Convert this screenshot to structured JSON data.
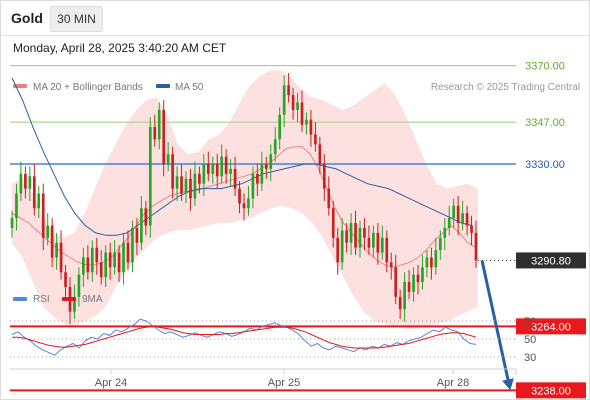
{
  "header": {
    "title": "Gold",
    "timeframe": "30 MIN",
    "datetime": "Monday, April 28, 2025 3:40:20 AM CET"
  },
  "legend": {
    "ma20_label": "MA 20 + Bollinger Bands",
    "ma50_label": "MA 50",
    "copyright": "Research © 2025 Trading Central",
    "rsi_label": "RSI",
    "ma9_label": "9MA"
  },
  "colors": {
    "ma20": "#f08080",
    "bollinger_fill": "#fde1e1",
    "ma50": "#2b5fa0",
    "candle_up": "#27a327",
    "candle_down": "#cc1f1f",
    "resistance": "#a8d48a",
    "pivot": "#4a7fd8",
    "support": "#e8191c",
    "arrow": "#2b5fa0",
    "rsi": "#5a86d8",
    "rsi_ma": "#e0191c"
  },
  "chart_data": [
    {
      "type": "candlestick",
      "title": "Gold",
      "x_ticks": [
        "Apr 24",
        "Apr 25",
        "Apr 28"
      ],
      "levels": [
        {
          "value": 3370.0,
          "label": "3370.00",
          "kind": "resistance"
        },
        {
          "value": 3347.0,
          "label": "3347.00",
          "kind": "resistance"
        },
        {
          "value": 3330.0,
          "label": "3330.00",
          "kind": "pivot"
        },
        {
          "value": 3290.8,
          "label": "3290.80",
          "kind": "last-price"
        },
        {
          "value": 3264.0,
          "label": "3264.00",
          "kind": "support"
        },
        {
          "value": 3238.0,
          "label": "3238.00",
          "kind": "support"
        }
      ],
      "closes": [
        3308,
        3318,
        3326,
        3320,
        3325,
        3312,
        3318,
        3300,
        3305,
        3292,
        3298,
        3286,
        3280,
        3270,
        3276,
        3285,
        3292,
        3286,
        3296,
        3290,
        3284,
        3294,
        3288,
        3294,
        3286,
        3298,
        3290,
        3304,
        3298,
        3312,
        3305,
        3345,
        3340,
        3352,
        3330,
        3334,
        3320,
        3325,
        3318,
        3324,
        3316,
        3326,
        3322,
        3330,
        3326,
        3330,
        3325,
        3333,
        3326,
        3328,
        3320,
        3314,
        3312,
        3316,
        3326,
        3322,
        3330,
        3328,
        3334,
        3340,
        3350,
        3362,
        3358,
        3352,
        3355,
        3346,
        3348,
        3342,
        3338,
        3330,
        3320,
        3312,
        3300,
        3290,
        3303,
        3298,
        3306,
        3296,
        3304,
        3300,
        3296,
        3302,
        3294,
        3300,
        3290,
        3288,
        3276,
        3271,
        3282,
        3278,
        3285,
        3282,
        3288,
        3292,
        3288,
        3295,
        3300,
        3304,
        3308,
        3313,
        3306,
        3310,
        3305,
        3302,
        3290.8
      ],
      "ma20": [
        3310,
        3308,
        3306,
        3303,
        3300,
        3297,
        3294,
        3292,
        3290,
        3289,
        3289,
        3290,
        3292,
        3296,
        3300,
        3305,
        3310,
        3313,
        3315,
        3317,
        3318,
        3319,
        3319,
        3320,
        3321,
        3322,
        3323,
        3324,
        3325,
        3326,
        3328,
        3330,
        3333,
        3336,
        3337,
        3337,
        3334,
        3328,
        3320,
        3312,
        3306,
        3302,
        3298,
        3294,
        3291,
        3289,
        3288,
        3289,
        3290,
        3292,
        3295,
        3299,
        3302,
        3305,
        3302,
        3298,
        3296
      ],
      "ma50": [
        3365,
        3356,
        3345,
        3335,
        3326,
        3317,
        3310,
        3305,
        3302,
        3301,
        3301,
        3302,
        3305,
        3308,
        3311,
        3314,
        3317,
        3319,
        3320,
        3320,
        3320,
        3321,
        3322,
        3324,
        3326,
        3327,
        3328,
        3329,
        3330,
        3330,
        3329,
        3328,
        3326,
        3324,
        3322,
        3321,
        3320,
        3318,
        3316,
        3314,
        3312,
        3310,
        3308,
        3306,
        3305
      ],
      "bollinger_upper": [
        3322,
        3324,
        3318,
        3308,
        3302,
        3300,
        3302,
        3310,
        3320,
        3330,
        3338,
        3346,
        3352,
        3356,
        3357,
        3350,
        3338,
        3334,
        3335,
        3340,
        3342,
        3347,
        3355,
        3362,
        3366,
        3368,
        3368,
        3365,
        3360,
        3357,
        3356,
        3354,
        3352,
        3354,
        3357,
        3360,
        3363,
        3358,
        3350,
        3340,
        3330,
        3322,
        3320,
        3321,
        3322,
        3320
      ],
      "bollinger_lower": [
        3298,
        3292,
        3282,
        3272,
        3268,
        3265,
        3264,
        3266,
        3268,
        3272,
        3280,
        3286,
        3292,
        3296,
        3300,
        3302,
        3303,
        3303,
        3304,
        3305,
        3306,
        3306,
        3307,
        3308,
        3310,
        3312,
        3313,
        3312,
        3310,
        3306,
        3300,
        3292,
        3284,
        3276,
        3270,
        3266,
        3265,
        3264,
        3263,
        3263,
        3264,
        3265,
        3266,
        3268,
        3270,
        3272
      ]
    },
    {
      "type": "line",
      "title": "RSI",
      "y_ticks": [
        "70",
        "50",
        "30"
      ],
      "ylim": [
        20,
        80
      ],
      "series": [
        {
          "name": "RSI",
          "values": [
            55,
            58,
            52,
            48,
            42,
            38,
            35,
            32,
            38,
            42,
            45,
            40,
            48,
            52,
            50,
            56,
            54,
            60,
            58,
            62,
            66,
            72,
            70,
            65,
            60,
            56,
            58,
            55,
            52,
            54,
            57,
            54,
            52,
            55,
            58,
            56,
            53,
            55,
            58,
            62,
            60,
            64,
            66,
            68,
            65,
            63,
            60,
            55,
            48,
            42,
            45,
            40,
            38,
            42,
            40,
            38,
            36,
            40,
            38,
            42,
            40,
            44,
            42,
            46,
            44,
            48,
            50,
            52,
            56,
            60,
            58,
            63,
            60,
            58,
            50,
            45,
            44
          ]
        },
        {
          "name": "9MA",
          "values": [
            52,
            52,
            51,
            49,
            47,
            45,
            43,
            42,
            41,
            41,
            42,
            43,
            44,
            46,
            48,
            50,
            52,
            54,
            56,
            58,
            60,
            62,
            63,
            64,
            63,
            62,
            61,
            59,
            57,
            56,
            55,
            55,
            55,
            55,
            55,
            56,
            56,
            57,
            58,
            59,
            60,
            61,
            62,
            63,
            63,
            63,
            62,
            60,
            58,
            55,
            52,
            49,
            46,
            44,
            42,
            41,
            40,
            40,
            40,
            40,
            40,
            41,
            42,
            43,
            44,
            45,
            47,
            49,
            51,
            53,
            55,
            56,
            57,
            57,
            56,
            54,
            52
          ]
        }
      ]
    }
  ]
}
